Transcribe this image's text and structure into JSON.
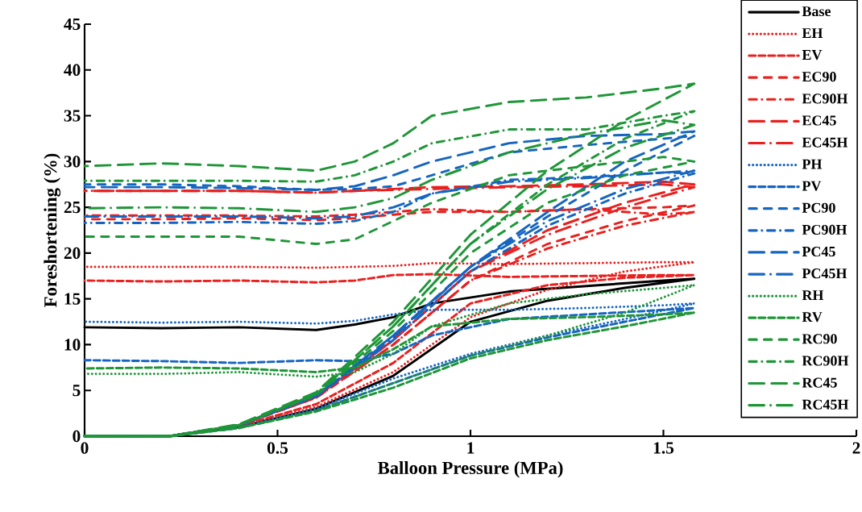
{
  "chart_data": {
    "type": "line",
    "xlabel": "Balloon Pressure (MPa)",
    "ylabel": "Foreshortening (%)",
    "x": [
      0,
      0.22,
      0.4,
      0.6,
      0.8,
      1.0,
      1.2,
      1.4,
      1.58,
      1.5,
      1.3,
      1.1,
      0.9,
      0.8,
      0.7,
      0.6,
      0.4,
      0.2,
      0
    ],
    "xlim": [
      0,
      2
    ],
    "xticks": [
      0,
      0.5,
      1,
      1.5,
      2
    ],
    "ylim": [
      0,
      45
    ],
    "yticks": [
      0,
      5,
      10,
      15,
      20,
      25,
      30,
      35,
      40,
      45
    ],
    "legend": "top right",
    "series": [
      {
        "name": "Base",
        "color": "#000000",
        "line_style": "solid",
        "values": [
          0,
          0,
          1.0,
          3.0,
          6.6,
          12.5,
          14.8,
          16.2,
          17.2,
          17.0,
          16.4,
          15.8,
          14.5,
          13.0,
          12.2,
          11.6,
          11.9,
          11.8,
          11.9
        ]
      },
      {
        "name": "EH",
        "color": "#e8201e",
        "line_style": "dotted",
        "values": [
          0,
          0,
          1.0,
          3.2,
          7.0,
          13.0,
          16.0,
          18.0,
          19.0,
          19.0,
          18.9,
          18.8,
          18.9,
          18.6,
          18.5,
          18.4,
          18.5,
          18.5,
          18.5
        ]
      },
      {
        "name": "EV",
        "color": "#e8201e",
        "line_style": "dashed",
        "values": [
          0,
          0,
          1.1,
          3.5,
          8.0,
          14.5,
          16.5,
          17.3,
          17.6,
          17.6,
          17.5,
          17.4,
          17.7,
          17.6,
          17.0,
          16.8,
          17.0,
          16.9,
          17.0
        ]
      },
      {
        "name": "EC90",
        "color": "#e8201e",
        "line_style": "dashed_loose",
        "values": [
          0,
          0,
          1.2,
          4.2,
          10.0,
          17.0,
          21.0,
          23.5,
          25.2,
          25.0,
          24.8,
          24.5,
          24.5,
          24.2,
          23.8,
          23.6,
          23.8,
          23.7,
          23.7
        ]
      },
      {
        "name": "EC90H",
        "color": "#e8201e",
        "line_style": "dash_dot",
        "values": [
          0,
          0,
          1.2,
          4.2,
          10.0,
          17.0,
          20.5,
          23.0,
          24.5,
          24.2,
          24.8,
          24.5,
          24.8,
          24.5,
          24.2,
          24.0,
          24.1,
          24.1,
          24.1
        ]
      },
      {
        "name": "EC45",
        "color": "#e8201e",
        "line_style": "long_dash",
        "values": [
          0,
          0,
          1.2,
          4.3,
          10.5,
          18.0,
          22.5,
          25.5,
          27.5,
          27.8,
          27.5,
          27.3,
          27.2,
          27.0,
          26.8,
          26.6,
          26.8,
          26.8,
          26.8
        ]
      },
      {
        "name": "EC45H",
        "color": "#e8201e",
        "line_style": "long_dash_dot",
        "values": [
          0,
          0,
          1.2,
          4.3,
          10.5,
          18.0,
          22.0,
          25.0,
          27.2,
          27.5,
          27.3,
          27.2,
          27.0,
          26.9,
          26.8,
          26.6,
          26.8,
          26.8,
          26.8
        ]
      },
      {
        "name": "PH",
        "color": "#1565c0",
        "line_style": "dotted",
        "values": [
          0,
          0,
          1.0,
          3.0,
          6.3,
          9.0,
          11.0,
          12.8,
          14.5,
          14.3,
          14.0,
          13.8,
          13.8,
          13.3,
          12.6,
          12.3,
          12.5,
          12.4,
          12.5
        ]
      },
      {
        "name": "PV",
        "color": "#1565c0",
        "line_style": "dashed",
        "values": [
          0,
          0,
          0.9,
          2.8,
          5.8,
          8.8,
          10.8,
          12.5,
          14.0,
          13.8,
          13.3,
          12.8,
          11.0,
          9.0,
          8.2,
          8.3,
          8.0,
          8.2,
          8.3
        ]
      },
      {
        "name": "PC90",
        "color": "#1565c0",
        "line_style": "dashed_loose",
        "values": [
          0,
          0,
          1.2,
          4.4,
          11.0,
          18.5,
          24.0,
          29.0,
          32.8,
          32.5,
          31.8,
          31.0,
          28.5,
          27.3,
          27.0,
          26.9,
          27.3,
          27.5,
          27.5
        ]
      },
      {
        "name": "PC90H",
        "color": "#1565c0",
        "line_style": "dash_dot",
        "values": [
          0,
          0,
          1.2,
          4.3,
          10.5,
          18.0,
          23.0,
          26.5,
          28.7,
          28.8,
          28.3,
          28.0,
          26.5,
          24.5,
          23.5,
          23.2,
          23.4,
          23.3,
          23.3
        ]
      },
      {
        "name": "PC45",
        "color": "#1565c0",
        "line_style": "long_dash",
        "values": [
          0,
          0,
          1.2,
          4.4,
          11.0,
          18.5,
          24.5,
          30.0,
          33.3,
          33.0,
          32.8,
          32.0,
          30.0,
          28.5,
          27.3,
          26.9,
          27.1,
          27.2,
          27.2
        ]
      },
      {
        "name": "PC45H",
        "color": "#1565c0",
        "line_style": "long_dash_dot",
        "values": [
          0,
          0,
          1.2,
          4.4,
          10.8,
          18.5,
          23.5,
          27.0,
          29.0,
          28.8,
          28.2,
          27.8,
          26.5,
          25.0,
          24.0,
          23.8,
          24.0,
          24.0,
          24.0
        ]
      },
      {
        "name": "RH",
        "color": "#1e9637",
        "line_style": "dotted",
        "values": [
          0,
          0,
          0.9,
          2.8,
          5.8,
          8.8,
          11.0,
          13.5,
          16.5,
          16.2,
          15.5,
          14.5,
          12.0,
          9.0,
          7.0,
          6.5,
          7.0,
          6.8,
          6.8
        ]
      },
      {
        "name": "RV",
        "color": "#1e9637",
        "line_style": "dashed",
        "values": [
          0,
          0,
          0.9,
          2.7,
          5.3,
          8.5,
          10.5,
          12.0,
          13.5,
          13.3,
          13.0,
          12.8,
          12.0,
          9.5,
          7.5,
          7.0,
          7.4,
          7.5,
          7.4
        ]
      },
      {
        "name": "RC90",
        "color": "#1e9637",
        "line_style": "dashed_loose",
        "values": [
          0,
          0,
          1.2,
          4.5,
          11.5,
          20.0,
          25.5,
          28.5,
          30.0,
          30.5,
          29.5,
          28.5,
          25.5,
          23.5,
          21.5,
          21.0,
          21.8,
          21.8,
          21.8
        ]
      },
      {
        "name": "RC90H",
        "color": "#1e9637",
        "line_style": "dash_dot",
        "values": [
          0,
          0,
          1.2,
          4.6,
          12.0,
          21.0,
          27.5,
          32.5,
          35.5,
          35.0,
          33.5,
          33.5,
          32.0,
          30.0,
          28.5,
          27.8,
          27.9,
          27.9,
          27.9
        ]
      },
      {
        "name": "RC45",
        "color": "#1e9637",
        "line_style": "long_dash",
        "values": [
          0,
          0,
          1.3,
          4.8,
          12.5,
          22.0,
          29.0,
          34.5,
          38.5,
          38.0,
          37.0,
          36.5,
          35.0,
          32.0,
          30.0,
          29.0,
          29.5,
          29.8,
          29.5
        ]
      },
      {
        "name": "RC45H",
        "color": "#1e9637",
        "line_style": "long_dash_dot",
        "values": [
          0,
          0,
          1.2,
          4.6,
          12.0,
          21.0,
          27.0,
          31.5,
          34.0,
          34.5,
          33.0,
          31.0,
          28.0,
          26.0,
          25.0,
          24.5,
          24.9,
          25.0,
          24.9
        ]
      }
    ]
  }
}
